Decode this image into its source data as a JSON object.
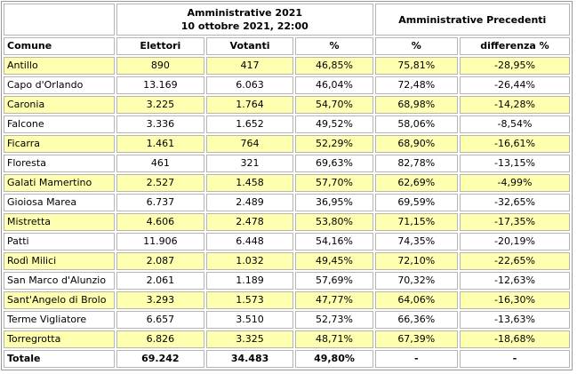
{
  "header": {
    "group_current_line1": "Amministrative 2021",
    "group_current_line2": "10 ottobre 2021, 22:00",
    "group_previous": "Amministrative Precedenti"
  },
  "columns": {
    "comune": "Comune",
    "elettori": "Elettori",
    "votanti": "Votanti",
    "pct_current": "%",
    "pct_previous": "%",
    "diff": "differenza %"
  },
  "rows": [
    {
      "comune": "Antillo",
      "elettori": "890",
      "votanti": "417",
      "pct": "46,85%",
      "pct_prev": "75,81%",
      "diff": "-28,95%",
      "highlight": true
    },
    {
      "comune": "Capo d'Orlando",
      "elettori": "13.169",
      "votanti": "6.063",
      "pct": "46,04%",
      "pct_prev": "72,48%",
      "diff": "-26,44%",
      "highlight": false
    },
    {
      "comune": "Caronia",
      "elettori": "3.225",
      "votanti": "1.764",
      "pct": "54,70%",
      "pct_prev": "68,98%",
      "diff": "-14,28%",
      "highlight": true
    },
    {
      "comune": "Falcone",
      "elettori": "3.336",
      "votanti": "1.652",
      "pct": "49,52%",
      "pct_prev": "58,06%",
      "diff": "-8,54%",
      "highlight": false
    },
    {
      "comune": "Ficarra",
      "elettori": "1.461",
      "votanti": "764",
      "pct": "52,29%",
      "pct_prev": "68,90%",
      "diff": "-16,61%",
      "highlight": true
    },
    {
      "comune": "Floresta",
      "elettori": "461",
      "votanti": "321",
      "pct": "69,63%",
      "pct_prev": "82,78%",
      "diff": "-13,15%",
      "highlight": false
    },
    {
      "comune": "Galati Mamertino",
      "elettori": "2.527",
      "votanti": "1.458",
      "pct": "57,70%",
      "pct_prev": "62,69%",
      "diff": "-4,99%",
      "highlight": true
    },
    {
      "comune": "Gioiosa Marea",
      "elettori": "6.737",
      "votanti": "2.489",
      "pct": "36,95%",
      "pct_prev": "69,59%",
      "diff": "-32,65%",
      "highlight": false
    },
    {
      "comune": "Mistretta",
      "elettori": "4.606",
      "votanti": "2.478",
      "pct": "53,80%",
      "pct_prev": "71,15%",
      "diff": "-17,35%",
      "highlight": true
    },
    {
      "comune": "Patti",
      "elettori": "11.906",
      "votanti": "6.448",
      "pct": "54,16%",
      "pct_prev": "74,35%",
      "diff": "-20,19%",
      "highlight": false
    },
    {
      "comune": "Rodì Milici",
      "elettori": "2.087",
      "votanti": "1.032",
      "pct": "49,45%",
      "pct_prev": "72,10%",
      "diff": "-22,65%",
      "highlight": true
    },
    {
      "comune": "San Marco d'Alunzio",
      "elettori": "2.061",
      "votanti": "1.189",
      "pct": "57,69%",
      "pct_prev": "70,32%",
      "diff": "-12,63%",
      "highlight": false
    },
    {
      "comune": "Sant'Angelo di Brolo",
      "elettori": "3.293",
      "votanti": "1.573",
      "pct": "47,77%",
      "pct_prev": "64,06%",
      "diff": "-16,30%",
      "highlight": true
    },
    {
      "comune": "Terme Vigliatore",
      "elettori": "6.657",
      "votanti": "3.510",
      "pct": "52,73%",
      "pct_prev": "66,36%",
      "diff": "-13,63%",
      "highlight": false
    },
    {
      "comune": "Torregrotta",
      "elettori": "6.826",
      "votanti": "3.325",
      "pct": "48,71%",
      "pct_prev": "67,39%",
      "diff": "-18,68%",
      "highlight": true
    }
  ],
  "total": {
    "comune": "Totale",
    "elettori": "69.242",
    "votanti": "34.483",
    "pct": "49,80%",
    "pct_prev": "-",
    "diff": "-"
  },
  "colors": {
    "highlight_row": "#ffffb0",
    "cell_border": "#b5b5b5"
  }
}
